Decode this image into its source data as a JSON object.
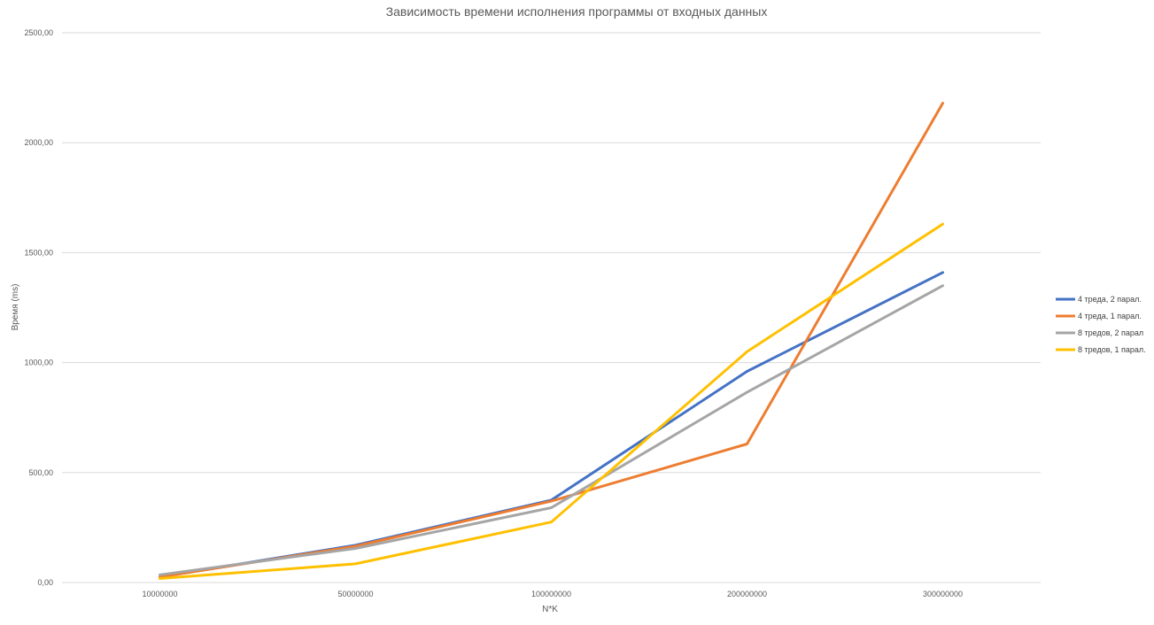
{
  "chart_data": {
    "type": "line",
    "title": "Зависимость времени исполнения программы от входных данных",
    "xlabel": "N*K",
    "ylabel": "Время (ms)",
    "categories": [
      "10000000",
      "50000000",
      "100000000",
      "200000000",
      "300000000"
    ],
    "ylim": [
      0,
      2500
    ],
    "y_ticks": [
      "0,00",
      "500,00",
      "1000,00",
      "1500,00",
      "2000,00",
      "2500,00"
    ],
    "y_tick_values": [
      0,
      500,
      1000,
      1500,
      2000,
      2500
    ],
    "grid": true,
    "legend_position": "right",
    "series": [
      {
        "name": "4 треда, 2 парал.",
        "color": "#4472C4",
        "values": [
          25,
          170,
          375,
          960,
          1410
        ]
      },
      {
        "name": "4 треда, 1 парал.",
        "color": "#ED7D31",
        "values": [
          25,
          165,
          370,
          630,
          2180
        ]
      },
      {
        "name": "8 тредов, 2 парал",
        "color": "#A5A5A5",
        "values": [
          35,
          155,
          340,
          865,
          1350
        ]
      },
      {
        "name": "8 тредов, 1 парал.",
        "color": "#FFC000",
        "values": [
          18,
          85,
          275,
          1050,
          1630
        ]
      }
    ]
  }
}
